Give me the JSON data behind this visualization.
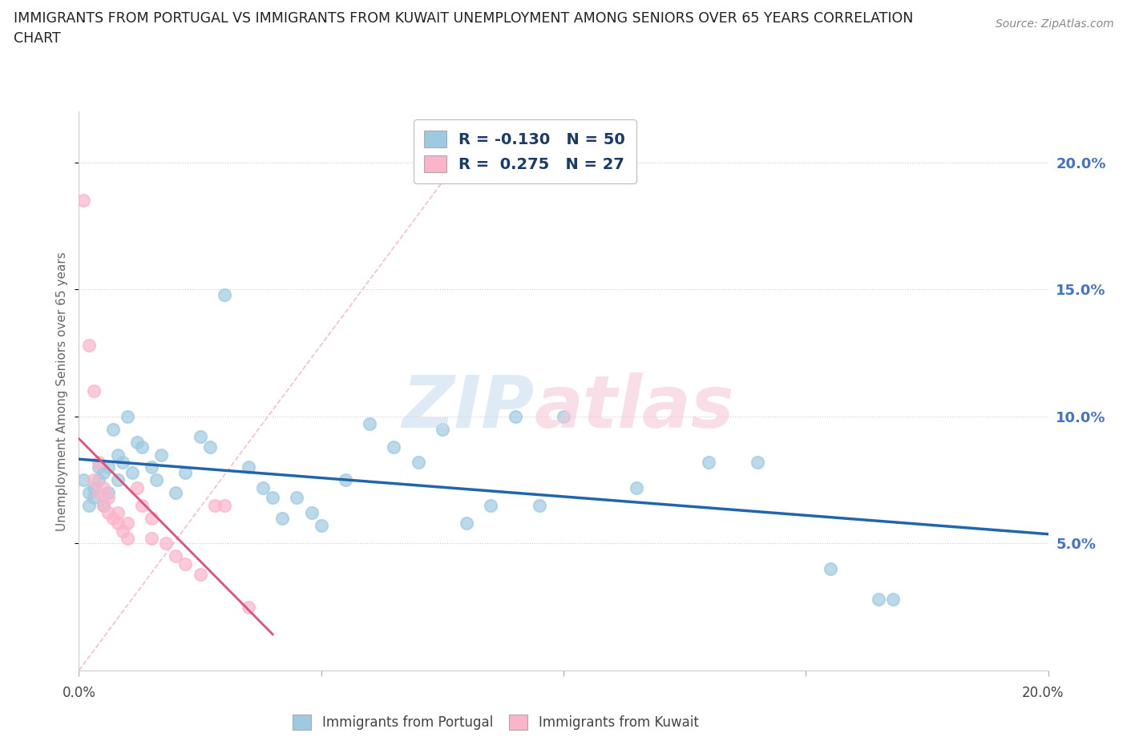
{
  "title_line1": "IMMIGRANTS FROM PORTUGAL VS IMMIGRANTS FROM KUWAIT UNEMPLOYMENT AMONG SENIORS OVER 65 YEARS CORRELATION",
  "title_line2": "CHART",
  "source": "Source: ZipAtlas.com",
  "ylabel": "Unemployment Among Seniors over 65 years",
  "portugal_color": "#9ecae1",
  "kuwait_color": "#fbb4c9",
  "portugal_line_color": "#2166ac",
  "kuwait_line_color": "#e0507a",
  "kuwait_dash_color": "#f0b0c0",
  "portugal_R": -0.13,
  "portugal_N": 50,
  "kuwait_R": 0.275,
  "kuwait_N": 27,
  "xlim": [
    0.0,
    0.2
  ],
  "ylim": [
    0.0,
    0.22
  ],
  "yticks": [
    0.05,
    0.1,
    0.15,
    0.2
  ],
  "ytick_labels": [
    "5.0%",
    "10.0%",
    "15.0%",
    "20.0%"
  ],
  "xticks": [
    0.0,
    0.05,
    0.1,
    0.15,
    0.2
  ],
  "xtick_labels": [
    "0.0%",
    "",
    "",
    "",
    "20.0%"
  ],
  "portugal_scatter": [
    [
      0.001,
      0.075
    ],
    [
      0.002,
      0.07
    ],
    [
      0.002,
      0.065
    ],
    [
      0.003,
      0.072
    ],
    [
      0.003,
      0.068
    ],
    [
      0.004,
      0.075
    ],
    [
      0.004,
      0.08
    ],
    [
      0.005,
      0.078
    ],
    [
      0.005,
      0.065
    ],
    [
      0.006,
      0.07
    ],
    [
      0.006,
      0.08
    ],
    [
      0.007,
      0.095
    ],
    [
      0.008,
      0.075
    ],
    [
      0.008,
      0.085
    ],
    [
      0.009,
      0.082
    ],
    [
      0.01,
      0.1
    ],
    [
      0.011,
      0.078
    ],
    [
      0.012,
      0.09
    ],
    [
      0.013,
      0.088
    ],
    [
      0.015,
      0.08
    ],
    [
      0.016,
      0.075
    ],
    [
      0.017,
      0.085
    ],
    [
      0.02,
      0.07
    ],
    [
      0.022,
      0.078
    ],
    [
      0.025,
      0.092
    ],
    [
      0.027,
      0.088
    ],
    [
      0.03,
      0.148
    ],
    [
      0.035,
      0.08
    ],
    [
      0.038,
      0.072
    ],
    [
      0.04,
      0.068
    ],
    [
      0.042,
      0.06
    ],
    [
      0.045,
      0.068
    ],
    [
      0.048,
      0.062
    ],
    [
      0.05,
      0.057
    ],
    [
      0.055,
      0.075
    ],
    [
      0.06,
      0.097
    ],
    [
      0.065,
      0.088
    ],
    [
      0.07,
      0.082
    ],
    [
      0.075,
      0.095
    ],
    [
      0.08,
      0.058
    ],
    [
      0.085,
      0.065
    ],
    [
      0.09,
      0.1
    ],
    [
      0.095,
      0.065
    ],
    [
      0.1,
      0.1
    ],
    [
      0.115,
      0.072
    ],
    [
      0.13,
      0.082
    ],
    [
      0.14,
      0.082
    ],
    [
      0.155,
      0.04
    ],
    [
      0.165,
      0.028
    ],
    [
      0.168,
      0.028
    ]
  ],
  "kuwait_scatter": [
    [
      0.001,
      0.185
    ],
    [
      0.002,
      0.128
    ],
    [
      0.003,
      0.11
    ],
    [
      0.003,
      0.075
    ],
    [
      0.004,
      0.082
    ],
    [
      0.004,
      0.07
    ],
    [
      0.005,
      0.072
    ],
    [
      0.005,
      0.065
    ],
    [
      0.006,
      0.068
    ],
    [
      0.006,
      0.062
    ],
    [
      0.007,
      0.06
    ],
    [
      0.008,
      0.062
    ],
    [
      0.008,
      0.058
    ],
    [
      0.009,
      0.055
    ],
    [
      0.01,
      0.058
    ],
    [
      0.01,
      0.052
    ],
    [
      0.012,
      0.072
    ],
    [
      0.013,
      0.065
    ],
    [
      0.015,
      0.06
    ],
    [
      0.015,
      0.052
    ],
    [
      0.018,
      0.05
    ],
    [
      0.02,
      0.045
    ],
    [
      0.022,
      0.042
    ],
    [
      0.025,
      0.038
    ],
    [
      0.028,
      0.065
    ],
    [
      0.03,
      0.065
    ],
    [
      0.035,
      0.025
    ]
  ]
}
